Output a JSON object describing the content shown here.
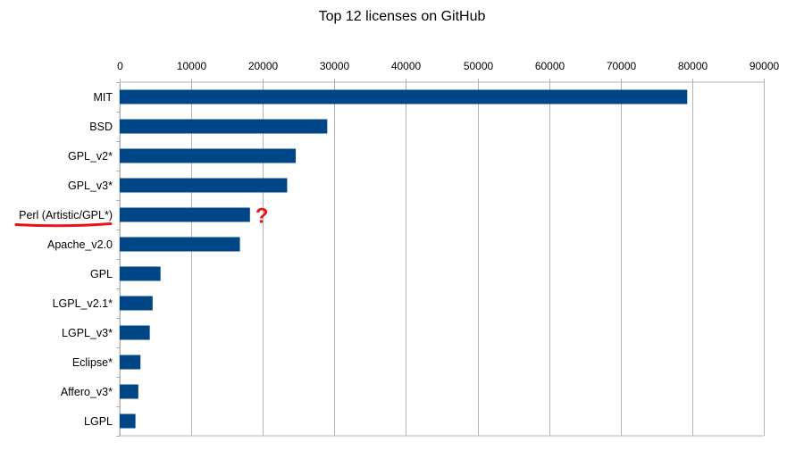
{
  "chart_data": {
    "type": "bar",
    "orientation": "horizontal",
    "title": "Top 12 licenses on GitHub",
    "xlabel": "",
    "ylabel": "",
    "categories": [
      "MIT",
      "BSD",
      "GPL_v2*",
      "GPL_v3*",
      "Perl (Artistic/GPL*)",
      "Apache_v2.0",
      "GPL",
      "LGPL_v2.1*",
      "LGPL_v3*",
      "Eclipse*",
      "Affero_v3*",
      "LGPL"
    ],
    "values": [
      79300,
      29000,
      24600,
      23400,
      18200,
      16800,
      5700,
      4600,
      4200,
      2900,
      2600,
      2200
    ],
    "xlim": [
      0,
      90000
    ],
    "xticks": [
      "0",
      "10000",
      "20000",
      "30000",
      "40000",
      "50000",
      "60000",
      "70000",
      "80000",
      "90000"
    ],
    "x_axis_position": "top",
    "grid": true,
    "legend": "none",
    "bar_color": "#004586",
    "annotation": {
      "category": "Perl (Artistic/GPL*)",
      "text": "?",
      "underline": true,
      "color": "#e8141b"
    }
  }
}
